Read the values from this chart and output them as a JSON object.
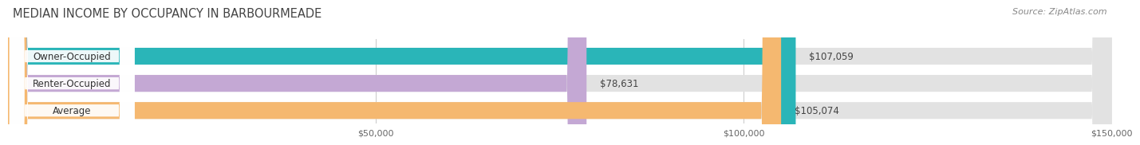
{
  "title": "MEDIAN INCOME BY OCCUPANCY IN BARBOURMEADE",
  "source": "Source: ZipAtlas.com",
  "categories": [
    "Owner-Occupied",
    "Renter-Occupied",
    "Average"
  ],
  "values": [
    107059,
    78631,
    105074
  ],
  "labels": [
    "$107,059",
    "$78,631",
    "$105,074"
  ],
  "bar_colors": [
    "#2ab5b8",
    "#c4a8d4",
    "#f5b870"
  ],
  "bar_bg_color": "#e2e2e2",
  "xlim": [
    0,
    150000
  ],
  "xticks": [
    50000,
    100000,
    150000
  ],
  "xticklabels": [
    "$50,000",
    "$100,000",
    "$150,000"
  ],
  "title_fontsize": 10.5,
  "source_fontsize": 8,
  "label_fontsize": 8.5,
  "cat_fontsize": 8.5,
  "tick_fontsize": 8,
  "background_color": "#f7f7f7",
  "figure_bg": "#ffffff",
  "bar_row_bg": "#ebebeb"
}
